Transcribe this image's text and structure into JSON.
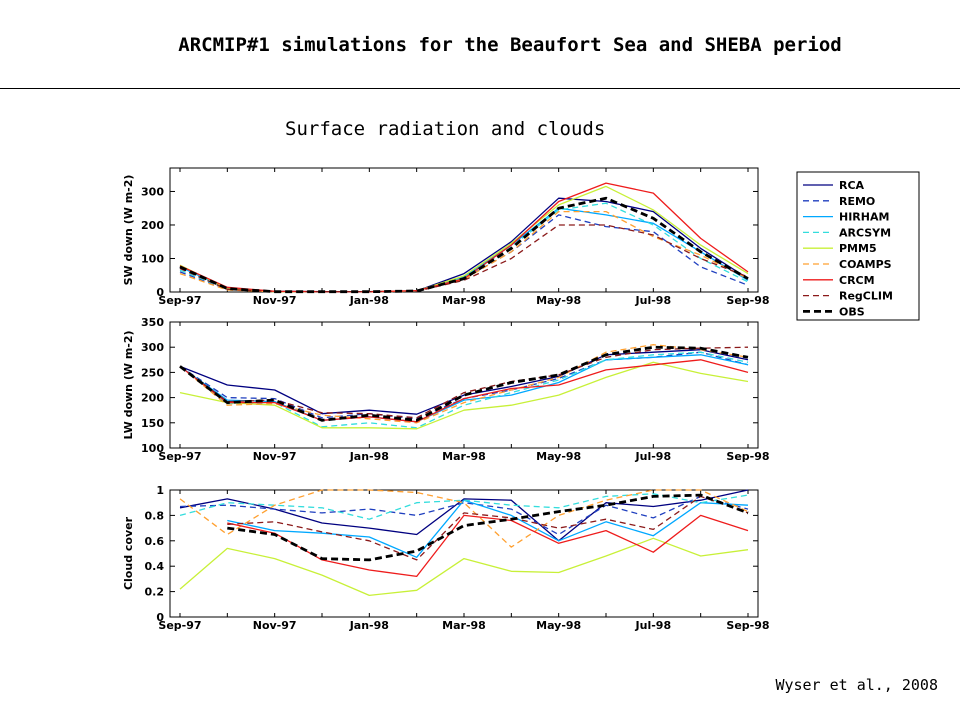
{
  "header": {
    "title": "ARCMIP#1 simulations for the Beaufort Sea and SHEBA period",
    "subtitle": "Surface radiation and clouds",
    "credit": "Wyser et al., 2008"
  },
  "chart_data": {
    "type": "line",
    "x": [
      "Sep-97",
      "Oct-97",
      "Nov-97",
      "Dec-97",
      "Jan-98",
      "Feb-98",
      "Mar-98",
      "Apr-98",
      "May-98",
      "Jun-98",
      "Jul-98",
      "Aug-98",
      "Sep-98"
    ],
    "xticks": [
      "Sep-97",
      "Nov-97",
      "Jan-98",
      "Mar-98",
      "May-98",
      "Jul-98",
      "Sep-98"
    ],
    "legend": {
      "placement": "right"
    },
    "series_styles": [
      {
        "name": "RCA",
        "color": "#000080",
        "dash": "solid"
      },
      {
        "name": "REMO",
        "color": "#1f3fbf",
        "dash": "dashed"
      },
      {
        "name": "HIRHAM",
        "color": "#00a8ff",
        "dash": "solid"
      },
      {
        "name": "ARCSYM",
        "color": "#33dddd",
        "dash": "dashed"
      },
      {
        "name": "PMM5",
        "color": "#c8f038",
        "dash": "solid"
      },
      {
        "name": "COAMPS",
        "color": "#ffa030",
        "dash": "dashed"
      },
      {
        "name": "CRCM",
        "color": "#ee1c1c",
        "dash": "solid"
      },
      {
        "name": "RegCLIM",
        "color": "#8b1a1a",
        "dash": "dashed"
      },
      {
        "name": "OBS",
        "color": "#000000",
        "dash": "dashed-bold"
      }
    ],
    "panels": [
      {
        "ylabel": "SW down (W m-2)",
        "ylim": [
          0,
          370
        ],
        "yticks": [
          0,
          100,
          200,
          300
        ],
        "series": [
          {
            "name": "RCA",
            "values": [
              78,
              12,
              2,
              1,
              1,
              3,
              55,
              150,
              280,
              270,
              240,
              130,
              40
            ]
          },
          {
            "name": "REMO",
            "values": [
              60,
              8,
              1,
              1,
              1,
              2,
              40,
              120,
              230,
              195,
              180,
              75,
              20
            ]
          },
          {
            "name": "HIRHAM",
            "values": [
              75,
              10,
              1,
              1,
              1,
              3,
              45,
              140,
              250,
              230,
              205,
              120,
              35
            ]
          },
          {
            "name": "ARCSYM",
            "values": [
              65,
              8,
              1,
              1,
              1,
              2,
              42,
              135,
              245,
              265,
              200,
              100,
              30
            ]
          },
          {
            "name": "PMM5",
            "values": [
              80,
              10,
              1,
              1,
              1,
              3,
              48,
              145,
              260,
              315,
              245,
              140,
              55
            ]
          },
          {
            "name": "COAMPS",
            "values": [
              55,
              6,
              1,
              1,
              1,
              2,
              38,
              120,
              240,
              240,
              165,
              110,
              40
            ]
          },
          {
            "name": "CRCM",
            "values": [
              78,
              14,
              2,
              1,
              1,
              4,
              40,
              140,
              270,
              325,
              295,
              160,
              60
            ]
          },
          {
            "name": "RegCLIM",
            "values": [
              70,
              8,
              1,
              1,
              1,
              2,
              35,
              100,
              200,
              200,
              170,
              100,
              45
            ]
          },
          {
            "name": "OBS",
            "values": [
              75,
              10,
              1,
              1,
              1,
              3,
              40,
              130,
              250,
              280,
              220,
              120,
              40
            ]
          }
        ]
      },
      {
        "ylabel": "LW down (W m-2)",
        "ylim": [
          100,
          350
        ],
        "yticks": [
          100,
          150,
          200,
          250,
          300,
          350
        ],
        "series": [
          {
            "name": "RCA",
            "values": [
              262,
              225,
              215,
              168,
              175,
              167,
              205,
              222,
              242,
              285,
              290,
              295,
              275
            ]
          },
          {
            "name": "REMO",
            "values": [
              262,
              200,
              198,
              160,
              168,
              158,
              198,
              215,
              238,
              275,
              280,
              290,
              265
            ]
          },
          {
            "name": "HIRHAM",
            "values": [
              262,
              195,
              192,
              155,
              162,
              152,
              195,
              205,
              230,
              275,
              280,
              285,
              265
            ]
          },
          {
            "name": "ARCSYM",
            "values": [
              262,
              188,
              190,
              142,
              150,
              140,
              185,
              210,
              235,
              275,
              285,
              290,
              270
            ]
          },
          {
            "name": "PMM5",
            "values": [
              210,
              190,
              185,
              140,
              140,
              138,
              175,
              185,
              205,
              240,
              270,
              248,
              232
            ]
          },
          {
            "name": "COAMPS",
            "values": [
              262,
              185,
              188,
              165,
              158,
              150,
              190,
              215,
              240,
              290,
              305,
              295,
              280
            ]
          },
          {
            "name": "CRCM",
            "values": [
              262,
              190,
              190,
              155,
              162,
              152,
              198,
              218,
              225,
              255,
              265,
              275,
              250
            ]
          },
          {
            "name": "RegCLIM",
            "values": [
              262,
              192,
              195,
              170,
              168,
              160,
              210,
              232,
              245,
              280,
              295,
              298,
              300
            ]
          },
          {
            "name": "OBS",
            "values": [
              262,
              190,
              195,
              155,
              165,
              155,
              205,
              230,
              245,
              285,
              300,
              298,
              280
            ]
          }
        ]
      },
      {
        "ylabel": "Cloud cover",
        "ylim": [
          0,
          1
        ],
        "yticks": [
          0,
          0.2,
          0.4,
          0.6,
          0.8,
          1
        ],
        "series": [
          {
            "name": "RCA",
            "values": [
              0.86,
              0.93,
              0.85,
              0.74,
              0.7,
              0.65,
              0.93,
              0.92,
              0.6,
              0.9,
              0.87,
              0.92,
              1.0
            ]
          },
          {
            "name": "REMO",
            "values": [
              0.87,
              0.88,
              0.85,
              0.82,
              0.85,
              0.8,
              0.9,
              0.85,
              0.65,
              0.88,
              0.78,
              0.95,
              0.85
            ]
          },
          {
            "name": "HIRHAM",
            "values": [
              null,
              0.76,
              0.68,
              0.66,
              0.63,
              0.47,
              0.92,
              0.8,
              0.6,
              0.75,
              0.64,
              0.9,
              0.88
            ]
          },
          {
            "name": "ARCSYM",
            "values": [
              0.8,
              0.9,
              0.88,
              0.86,
              0.77,
              0.9,
              0.92,
              0.88,
              0.86,
              0.95,
              0.97,
              0.9,
              0.96
            ]
          },
          {
            "name": "PMM5",
            "values": [
              0.22,
              0.54,
              0.46,
              0.33,
              0.17,
              0.21,
              0.46,
              0.36,
              0.35,
              0.48,
              0.62,
              0.48,
              0.53
            ]
          },
          {
            "name": "COAMPS",
            "values": [
              0.93,
              0.65,
              0.88,
              1.0,
              1.0,
              0.98,
              0.9,
              0.55,
              0.8,
              0.92,
              1.0,
              1.0,
              0.83
            ]
          },
          {
            "name": "CRCM",
            "values": [
              null,
              0.74,
              0.66,
              0.45,
              0.37,
              0.32,
              0.8,
              0.76,
              0.58,
              0.68,
              0.51,
              0.8,
              0.68
            ]
          },
          {
            "name": "RegCLIM",
            "values": [
              null,
              0.73,
              0.75,
              0.67,
              0.6,
              0.45,
              0.82,
              0.78,
              0.7,
              0.77,
              0.69,
              0.95,
              0.82
            ]
          },
          {
            "name": "OBS",
            "values": [
              null,
              0.7,
              0.65,
              0.46,
              0.45,
              0.52,
              0.72,
              0.77,
              0.83,
              0.88,
              0.95,
              0.96,
              0.82
            ]
          }
        ]
      }
    ]
  }
}
